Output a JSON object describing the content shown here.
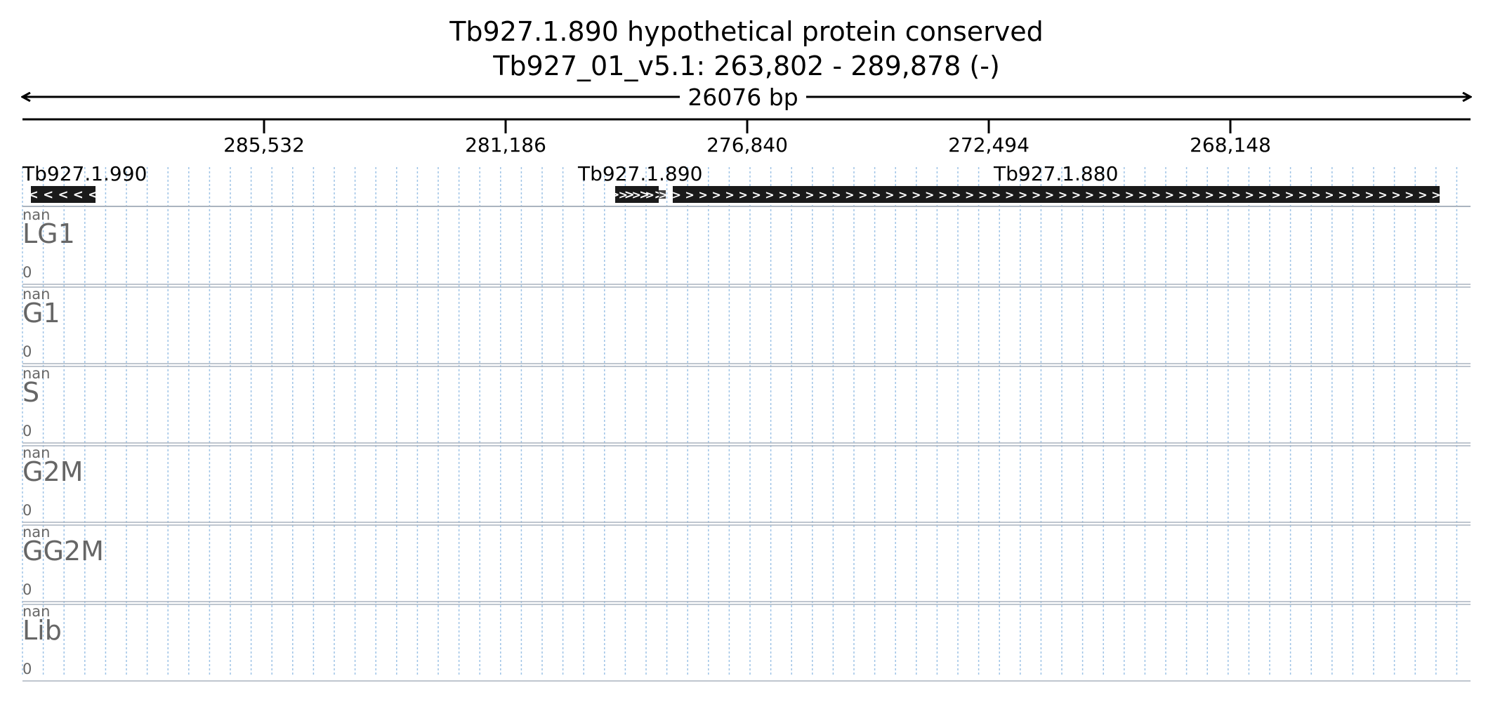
{
  "header": {
    "title": "Tb927.1.890  hypothetical protein  conserved",
    "location": "Tb927_01_v5.1: 263,802 - 289,878 (-)"
  },
  "ruler": {
    "span_label": "26076 bp",
    "ticks": [
      "285,532",
      "281,186",
      "276,840",
      "272,494",
      "268,148"
    ]
  },
  "genes": [
    {
      "name": "Tb927.1.990",
      "strand_glyph": "<"
    },
    {
      "name": "Tb927.1.890",
      "strand_glyph": ">"
    },
    {
      "name": "Tb927.1.880",
      "strand_glyph": ">"
    }
  ],
  "tracks": [
    {
      "name": "LG1",
      "max_label": "nan",
      "min_label": "0"
    },
    {
      "name": "G1",
      "max_label": "nan",
      "min_label": "0"
    },
    {
      "name": "S",
      "max_label": "nan",
      "min_label": "0"
    },
    {
      "name": "G2M",
      "max_label": "nan",
      "min_label": "0"
    },
    {
      "name": "GG2M",
      "max_label": "nan",
      "min_label": "0"
    },
    {
      "name": "Lib",
      "max_label": "nan",
      "min_label": "0"
    }
  ],
  "colors": {
    "gene_fill": "#1a1a1a",
    "gene_glyph": "#ffffff",
    "grid": "#9ec3e6",
    "track_label": "#666666",
    "separator": "#aab4bf",
    "text": "#000000"
  }
}
